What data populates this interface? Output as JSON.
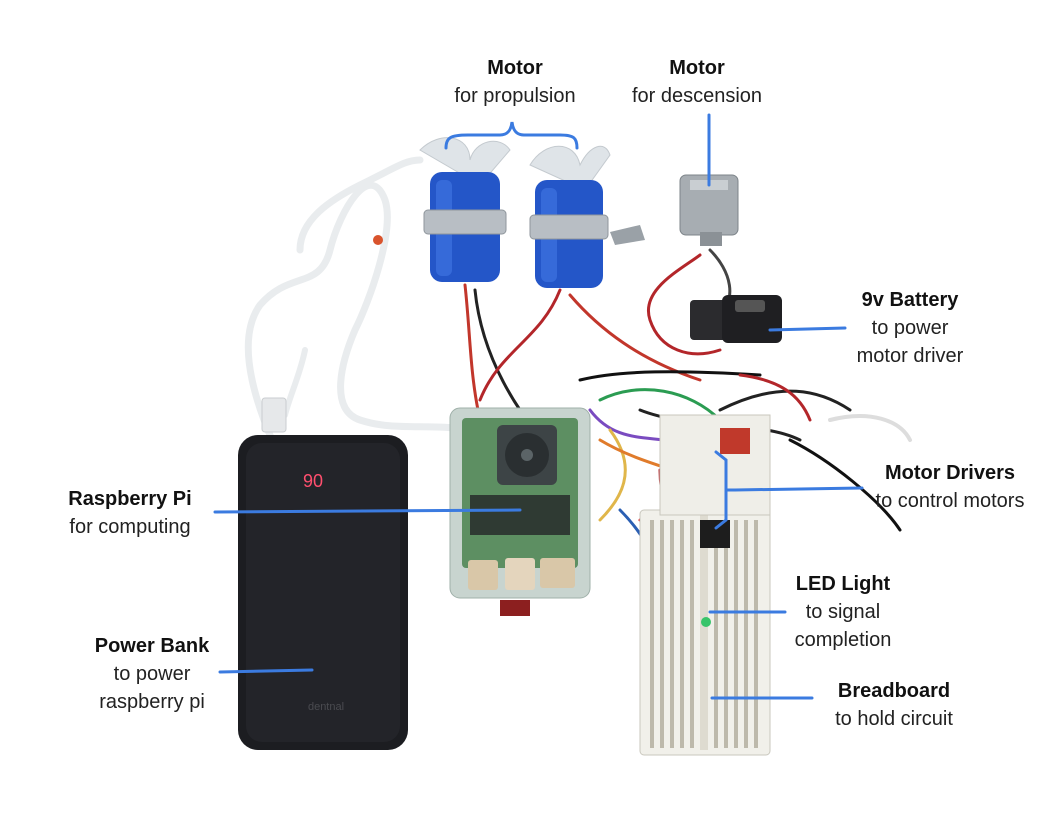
{
  "labels": {
    "motor_propulsion": {
      "title": "Motor",
      "subtitle": "for propulsion"
    },
    "motor_descension": {
      "title": "Motor",
      "subtitle": "for descension"
    },
    "battery_9v": {
      "title": "9v Battery",
      "subtitle_line1": "to power",
      "subtitle_line2": "motor driver"
    },
    "motor_drivers": {
      "title": "Motor Drivers",
      "subtitle": "to control motors"
    },
    "raspberry_pi": {
      "title": "Raspberry Pi",
      "subtitle": "for computing"
    },
    "led_light": {
      "title": "LED Light",
      "subtitle_line1": "to signal",
      "subtitle_line2": "completion"
    },
    "power_bank": {
      "title": "Power Bank",
      "subtitle_line1": "to power",
      "subtitle_line2": "raspberry pi"
    },
    "breadboard": {
      "title": "Breadboard",
      "subtitle": "to hold circuit"
    }
  },
  "power_bank_display": "90",
  "power_bank_brand": "dentnal",
  "colors": {
    "leader_line": "#3b7be0",
    "motor_blue": "#2456c8",
    "propeller": "#dfe4e8",
    "power_bank": "#1c1d21",
    "pi_case": "#c8d4cf",
    "pi_board": "#5d8f62",
    "breadboard": "#f1f0ea",
    "battery": "#1f1f22"
  }
}
